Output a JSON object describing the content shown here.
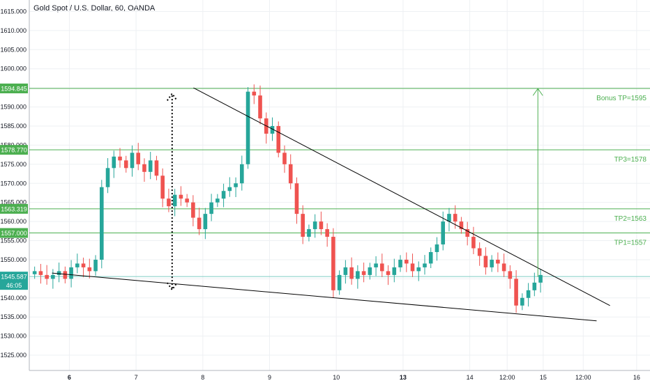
{
  "header": {
    "title": "Gold Spot / U.S. Dollar, 60, OANDA"
  },
  "colors": {
    "up": "#26a69a",
    "down": "#ef5350",
    "level": "#4caf50",
    "level_label_bg": "#4caf50",
    "price_label_bg": "#26a69a",
    "grid": "#eef0f3",
    "axis_text": "#131722",
    "trendline": "#000000"
  },
  "chart_data": {
    "type": "candlestick",
    "title": "Gold Spot / U.S. Dollar, 60, OANDA",
    "ylim": [
      1521,
      1618
    ],
    "y_ticks": [
      "1525.000",
      "1530.000",
      "1535.000",
      "1540.000",
      "1545.000",
      "1550.000",
      "1555.000",
      "1560.000",
      "1565.000",
      "1570.000",
      "1575.000",
      "1580.000",
      "1585.000",
      "1590.000",
      "1595.000",
      "1600.000",
      "1605.000",
      "1610.000",
      "1615.000"
    ],
    "x_ticks": [
      "6",
      "7",
      "8",
      "9",
      "10",
      "13",
      "14",
      "12:00",
      "15",
      "12:00",
      "16"
    ],
    "x_tick_bold": [
      true,
      false,
      false,
      false,
      false,
      true,
      false,
      false,
      false,
      false,
      false
    ],
    "x_tick_index": [
      6,
      11,
      16,
      21,
      26,
      31,
      36,
      38.8,
      41.5,
      44.5,
      48.5
    ],
    "x_range": [
      3.0,
      49.5
    ],
    "close_series": [
      1547,
      1546,
      1545,
      1546,
      1547,
      1545,
      1548,
      1549,
      1548,
      1547,
      1550,
      1569,
      1574,
      1577,
      1576,
      1574,
      1578,
      1575,
      1573,
      1576,
      1572,
      1566,
      1564,
      1567,
      1566,
      1565,
      1561,
      1558,
      1562,
      1565,
      1566,
      1568,
      1569,
      1570,
      1575,
      1594,
      1593,
      1587,
      1583,
      1585,
      1578,
      1575,
      1570,
      1562,
      1556,
      1558,
      1560,
      1558,
      1556,
      1542,
      1546,
      1548,
      1545,
      1547,
      1546,
      1548,
      1549,
      1547,
      1546,
      1548,
      1550,
      1549,
      1547,
      1548,
      1549,
      1552,
      1554,
      1560,
      1562,
      1560,
      1558,
      1556,
      1553,
      1551,
      1548,
      1550,
      1549,
      1547,
      1545,
      1538,
      1540,
      1542,
      1544,
      1546
    ],
    "price_labels": [
      {
        "value": 1594.845,
        "text": "1594.845",
        "right_label": "Bonus TP=1595"
      },
      {
        "value": 1578.77,
        "text": "1578.770",
        "right_label": "TP3=1578"
      },
      {
        "value": 1563.319,
        "text": "1563.319",
        "right_label": "TP2=1563"
      },
      {
        "value": 1557.0,
        "text": "1557.000",
        "right_label": "TP1=1557"
      }
    ],
    "current_price": {
      "value": 1545.587,
      "text": "1545.587",
      "countdown": "46:05"
    },
    "trendlines": [
      {
        "name": "upper",
        "points": [
          [
            15.3,
            1595
          ],
          [
            46.5,
            1538
          ]
        ]
      },
      {
        "name": "lower",
        "points": [
          [
            4.7,
            1546.5
          ],
          [
            45.5,
            1534
          ]
        ]
      }
    ],
    "arrows": [
      {
        "name": "target-arrow",
        "x": 41.1,
        "from": 1545.5,
        "to": 1594.8
      },
      {
        "name": "measure-arrow",
        "x": 13.7,
        "from": 1542.5,
        "to": 1593.5,
        "dotted": true
      }
    ]
  }
}
